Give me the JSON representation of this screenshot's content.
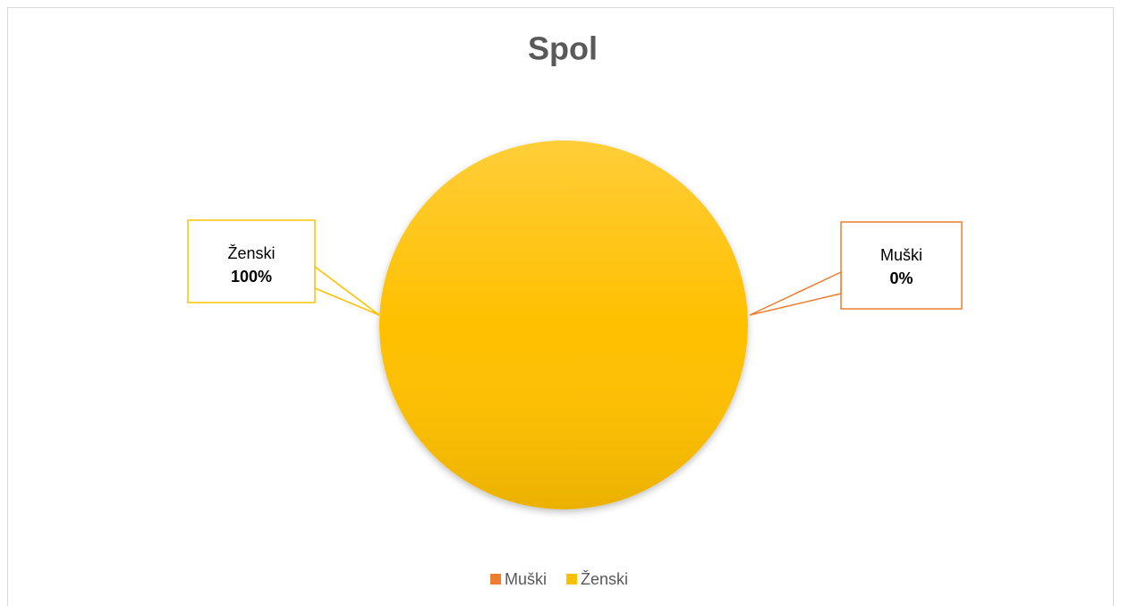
{
  "chart_data": {
    "type": "pie",
    "title": "Spol",
    "categories": [
      "Muški",
      "Ženski"
    ],
    "values": [
      0,
      100
    ],
    "value_labels": [
      "0%",
      "100%"
    ],
    "colors": [
      "#ED7D31",
      "#FFC000"
    ],
    "legend": "bottom"
  }
}
